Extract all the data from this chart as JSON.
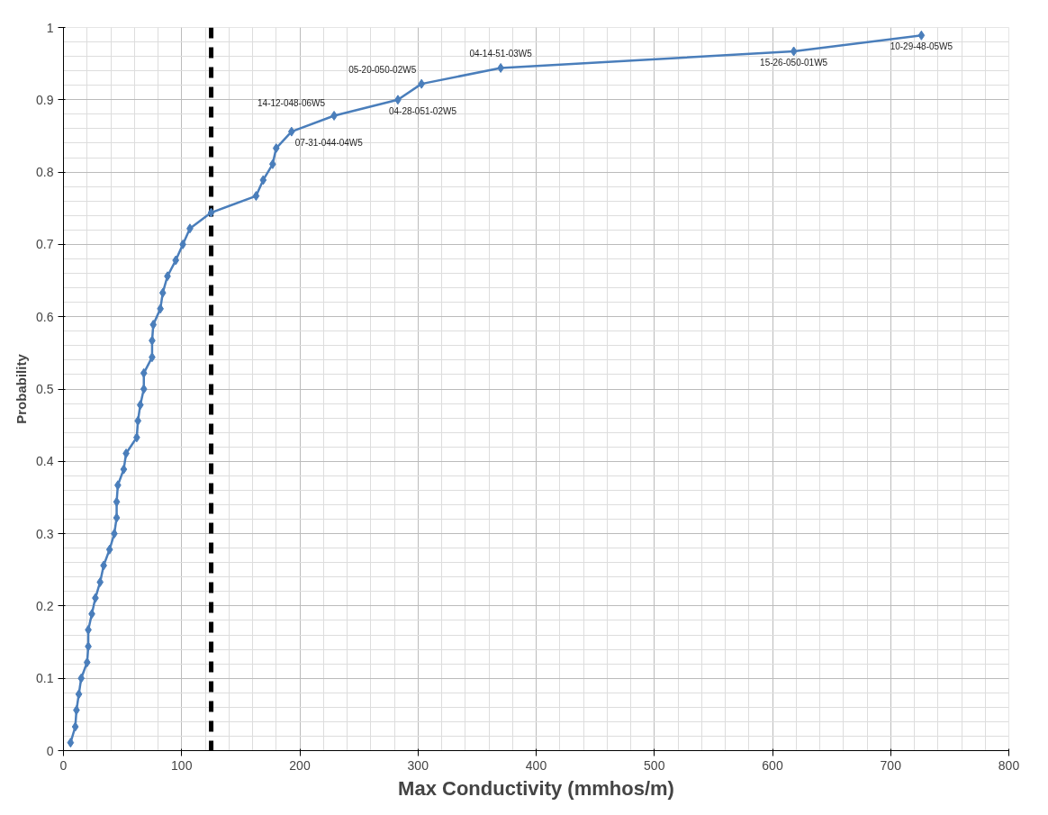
{
  "chart_data": {
    "type": "line",
    "xlabel": "Max Conductivity (mmhos/m)",
    "ylabel": "Probability",
    "xlim": [
      0,
      800
    ],
    "xticks": [
      0,
      100,
      200,
      300,
      400,
      500,
      600,
      700,
      800
    ],
    "ylim": [
      0,
      1
    ],
    "yticks": [
      0,
      0.1,
      0.2,
      0.3,
      0.4,
      0.5,
      0.6,
      0.7,
      0.8,
      0.9,
      1
    ],
    "grid": true,
    "marker": "diamond",
    "line_style": "solid",
    "series": [
      {
        "color": "#4a7ebb",
        "x": [
          6,
          10,
          11,
          13,
          15,
          20,
          21,
          21,
          24,
          27,
          31,
          34,
          39,
          43,
          45,
          45,
          46,
          51,
          53,
          62,
          63,
          65,
          68,
          68,
          75,
          75,
          76,
          82,
          84,
          88,
          95,
          101,
          107,
          125,
          163,
          169,
          177,
          180,
          193,
          229,
          283,
          303,
          370,
          618,
          726
        ],
        "values": [
          0.011,
          0.033,
          0.056,
          0.078,
          0.1,
          0.122,
          0.144,
          0.167,
          0.189,
          0.211,
          0.233,
          0.256,
          0.278,
          0.3,
          0.322,
          0.344,
          0.367,
          0.389,
          0.411,
          0.433,
          0.456,
          0.478,
          0.5,
          0.522,
          0.544,
          0.567,
          0.589,
          0.611,
          0.633,
          0.656,
          0.678,
          0.7,
          0.722,
          0.744,
          0.767,
          0.789,
          0.811,
          0.833,
          0.856,
          0.878,
          0.9,
          0.922,
          0.944,
          0.967,
          0.989
        ]
      }
    ],
    "ref_lines": [
      {
        "axis": "x",
        "value": 125,
        "color": "#000000",
        "line_style": "dashed"
      }
    ],
    "annotations": [
      {
        "text": "14-12-048-06W5",
        "x": 229,
        "y": 0.878
      },
      {
        "text": "07-31-044-04W5",
        "x": 193,
        "y": 0.856
      },
      {
        "text": "04-28-051-02W5",
        "x": 283,
        "y": 0.9
      },
      {
        "text": "05-20-050-02W5",
        "x": 303,
        "y": 0.922
      },
      {
        "text": "04-14-51-03W5",
        "x": 370,
        "y": 0.944
      },
      {
        "text": "15-26-050-01W5",
        "x": 618,
        "y": 0.967
      },
      {
        "text": "10-29-48-05W5",
        "x": 726,
        "y": 0.989
      }
    ]
  }
}
